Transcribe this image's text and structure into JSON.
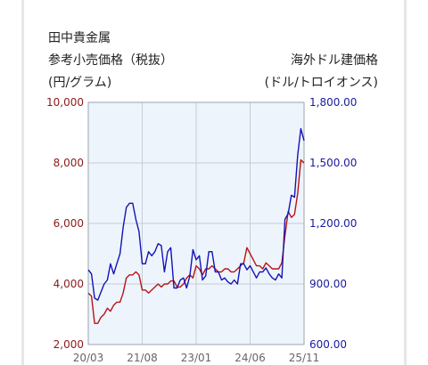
{
  "header": {
    "left_line1": "田中貴金属",
    "left_line2": "参考小売価格（税抜）",
    "left_line3": "(円/グラム)",
    "right_line1": "海外ドル建価格",
    "right_line2": "(ドル/トロイオンス)"
  },
  "colors": {
    "yen_series": "#b81414",
    "usd_series": "#1414b4",
    "plot_background": "#eef4fc",
    "grid": "#c4cdd8",
    "left_axis_text": "#8b1a1a",
    "right_axis_text": "#1a1a9e"
  },
  "chart_data": {
    "type": "line",
    "grid": true,
    "x_ticks": [
      "20/03",
      "21/08",
      "23/01",
      "24/06",
      "25/11"
    ],
    "y_left": {
      "ticks": [
        "10,000",
        "8,000",
        "6,000",
        "4,000",
        "2,000"
      ],
      "range": [
        2000,
        10000
      ]
    },
    "y_right": {
      "ticks": [
        "1,800.00",
        "1,500.00",
        "1,200.00",
        "900.00",
        "600.00"
      ],
      "range": [
        600,
        1800
      ]
    },
    "series": [
      {
        "axis": "left",
        "x": [
          "2020-03",
          "2020-04",
          "2020-05",
          "2020-06",
          "2020-07",
          "2020-08",
          "2020-09",
          "2020-10",
          "2020-11",
          "2020-12",
          "2021-01",
          "2021-02",
          "2021-03",
          "2021-04",
          "2021-05",
          "2021-06",
          "2021-07",
          "2021-08",
          "2021-09",
          "2021-10",
          "2021-11",
          "2021-12",
          "2022-01",
          "2022-02",
          "2022-03",
          "2022-04",
          "2022-05",
          "2022-06",
          "2022-07",
          "2022-08",
          "2022-09",
          "2022-10",
          "2022-11",
          "2022-12",
          "2023-01",
          "2023-02",
          "2023-03",
          "2023-04",
          "2023-05",
          "2023-06",
          "2023-07",
          "2023-08",
          "2023-09",
          "2023-10",
          "2023-11",
          "2023-12",
          "2024-01",
          "2024-02",
          "2024-03",
          "2024-04",
          "2024-05",
          "2024-06",
          "2024-07",
          "2024-08",
          "2024-09",
          "2024-10",
          "2024-11",
          "2024-12",
          "2025-01",
          "2025-02",
          "2025-03",
          "2025-04",
          "2025-05",
          "2025-06",
          "2025-07",
          "2025-08",
          "2025-09",
          "2025-10",
          "2025-11"
        ],
        "values": [
          3700,
          3600,
          2700,
          2700,
          2900,
          3000,
          3200,
          3100,
          3300,
          3400,
          3400,
          3700,
          4200,
          4300,
          4300,
          4400,
          4300,
          3800,
          3800,
          3700,
          3800,
          3900,
          4000,
          3900,
          4000,
          4000,
          4100,
          4100,
          3900,
          3900,
          4000,
          4200,
          4300,
          4200,
          4600,
          4500,
          4300,
          4500,
          4500,
          4600,
          4500,
          4400,
          4400,
          4500,
          4500,
          4400,
          4400,
          4500,
          4600,
          4700,
          5200,
          5000,
          4800,
          4600,
          4600,
          4500,
          4700,
          4600,
          4500,
          4500,
          4500,
          4700,
          5600,
          6400,
          6200,
          6300,
          7000,
          8100,
          8000
        ]
      },
      {
        "axis": "right",
        "x": [
          "2020-03",
          "2020-04",
          "2020-05",
          "2020-06",
          "2020-07",
          "2020-08",
          "2020-09",
          "2020-10",
          "2020-11",
          "2020-12",
          "2021-01",
          "2021-02",
          "2021-03",
          "2021-04",
          "2021-05",
          "2021-06",
          "2021-07",
          "2021-08",
          "2021-09",
          "2021-10",
          "2021-11",
          "2021-12",
          "2022-01",
          "2022-02",
          "2022-03",
          "2022-04",
          "2022-05",
          "2022-06",
          "2022-07",
          "2022-08",
          "2022-09",
          "2022-10",
          "2022-11",
          "2022-12",
          "2023-01",
          "2023-02",
          "2023-03",
          "2023-04",
          "2023-05",
          "2023-06",
          "2023-07",
          "2023-08",
          "2023-09",
          "2023-10",
          "2023-11",
          "2023-12",
          "2024-01",
          "2024-02",
          "2024-03",
          "2024-04",
          "2024-05",
          "2024-06",
          "2024-07",
          "2024-08",
          "2024-09",
          "2024-10",
          "2024-11",
          "2024-12",
          "2025-01",
          "2025-02",
          "2025-03",
          "2025-04",
          "2025-05",
          "2025-06",
          "2025-07",
          "2025-08",
          "2025-09",
          "2025-10",
          "2025-11"
        ],
        "values": [
          970,
          950,
          830,
          820,
          860,
          900,
          920,
          1000,
          950,
          1000,
          1050,
          1180,
          1280,
          1300,
          1300,
          1220,
          1160,
          1000,
          1000,
          1060,
          1040,
          1060,
          1100,
          1090,
          960,
          1060,
          1080,
          880,
          880,
          920,
          930,
          880,
          940,
          1070,
          1020,
          1040,
          920,
          940,
          1060,
          1060,
          960,
          960,
          920,
          930,
          910,
          900,
          920,
          900,
          1000,
          1000,
          970,
          990,
          960,
          930,
          960,
          960,
          980,
          950,
          930,
          920,
          950,
          930,
          1220,
          1250,
          1340,
          1330,
          1540,
          1670,
          1610
        ]
      }
    ]
  }
}
